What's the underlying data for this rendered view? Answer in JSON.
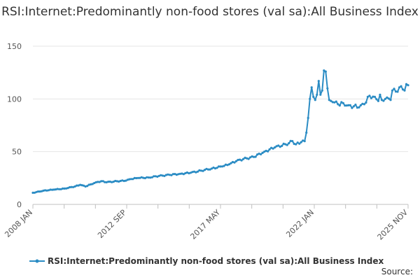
{
  "chart_data": {
    "type": "line",
    "title": "RSI:Internet:Predominantly non-food stores (val sa):All Business Index",
    "xlabel": "",
    "ylabel": "",
    "ylim": [
      0,
      150
    ],
    "yticks": [
      "0",
      "50",
      "100",
      "150"
    ],
    "x_ticklabels": [
      "2008 JAN",
      "2012 SEP",
      "2017 MAY",
      "2022 JAN",
      "2025 NOV"
    ],
    "x_range": [
      "2008-01",
      "2025-11"
    ],
    "grid": true,
    "legend_position": "bottom",
    "series": [
      {
        "name": "RSI:Internet:Predominantly non-food stores (val sa):All Business Index",
        "color": "#2b8cc4",
        "points": [
          [
            "2008-01",
            11
          ],
          [
            "2008-07",
            13
          ],
          [
            "2009-01",
            14
          ],
          [
            "2009-07",
            15
          ],
          [
            "2010-01",
            17
          ],
          [
            "2010-04",
            18.5
          ],
          [
            "2010-07",
            17
          ],
          [
            "2010-10",
            19
          ],
          [
            "2011-01",
            21
          ],
          [
            "2011-04",
            22
          ],
          [
            "2011-07",
            21
          ],
          [
            "2012-01",
            22
          ],
          [
            "2012-06",
            22.5
          ],
          [
            "2012-09",
            24
          ],
          [
            "2013-01",
            25
          ],
          [
            "2013-07",
            25.5
          ],
          [
            "2014-01",
            27
          ],
          [
            "2014-07",
            28
          ],
          [
            "2015-01",
            29
          ],
          [
            "2015-07",
            30
          ],
          [
            "2016-01",
            32
          ],
          [
            "2016-07",
            34
          ],
          [
            "2017-01",
            36
          ],
          [
            "2017-05",
            38
          ],
          [
            "2017-09",
            41
          ],
          [
            "2018-01",
            43
          ],
          [
            "2018-07",
            45
          ],
          [
            "2019-01",
            50
          ],
          [
            "2019-07",
            54
          ],
          [
            "2020-01",
            57
          ],
          [
            "2020-03",
            58
          ],
          [
            "2020-05",
            60
          ],
          [
            "2020-07",
            57
          ],
          [
            "2020-10",
            59
          ],
          [
            "2020-12",
            60
          ],
          [
            "2021-01",
            68
          ],
          [
            "2021-02",
            82
          ],
          [
            "2021-03",
            100
          ],
          [
            "2021-04",
            111
          ],
          [
            "2021-05",
            102
          ],
          [
            "2021-06",
            99
          ],
          [
            "2021-07",
            104
          ],
          [
            "2021-08",
            117
          ],
          [
            "2021-09",
            104
          ],
          [
            "2021-10",
            108
          ],
          [
            "2021-11",
            127
          ],
          [
            "2021-12",
            126
          ],
          [
            "2022-01",
            110
          ],
          [
            "2022-02",
            99
          ],
          [
            "2022-04",
            97
          ],
          [
            "2022-07",
            95
          ],
          [
            "2022-10",
            96
          ],
          [
            "2023-01",
            94
          ],
          [
            "2023-04",
            93
          ],
          [
            "2023-07",
            92
          ],
          [
            "2023-10",
            95
          ],
          [
            "2024-01",
            103
          ],
          [
            "2024-04",
            102
          ],
          [
            "2024-06",
            98
          ],
          [
            "2024-07",
            104
          ],
          [
            "2024-08",
            99
          ],
          [
            "2024-10",
            100
          ],
          [
            "2025-01",
            99
          ],
          [
            "2025-02",
            108
          ],
          [
            "2025-04",
            107
          ],
          [
            "2025-06",
            111
          ],
          [
            "2025-08",
            109
          ],
          [
            "2025-09",
            108
          ],
          [
            "2025-10",
            114
          ],
          [
            "2025-11",
            113
          ]
        ]
      }
    ]
  },
  "source_label": "Source:"
}
